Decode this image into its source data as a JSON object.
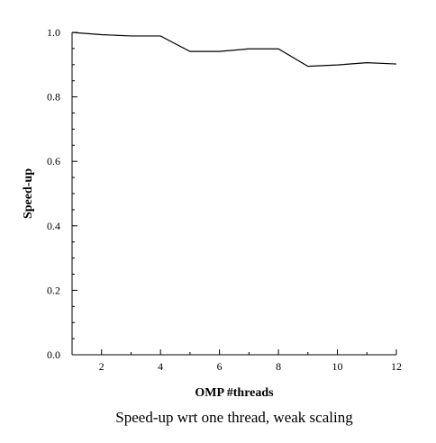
{
  "chart_data": {
    "type": "line",
    "title": "",
    "caption": "Speed-up wrt one thread, weak scaling",
    "xlabel": "OMP #threads",
    "ylabel": "Speed-up",
    "xlim": [
      1,
      12
    ],
    "ylim": [
      0.0,
      1.0
    ],
    "x_ticks": [
      2,
      4,
      6,
      8,
      10,
      12
    ],
    "y_ticks": [
      0.0,
      0.2,
      0.4,
      0.6,
      0.8,
      1.0
    ],
    "y_tick_labels": [
      "0.0",
      "0.2",
      "0.4",
      "0.6",
      "0.8",
      "1.0"
    ],
    "grid": false,
    "legend": "none",
    "series": [
      {
        "x": [
          1,
          2,
          3,
          4,
          5,
          6,
          7,
          8,
          9,
          10,
          11,
          12
        ],
        "values": [
          1.0,
          0.993,
          0.989,
          0.989,
          0.941,
          0.941,
          0.949,
          0.949,
          0.895,
          0.899,
          0.906,
          0.902
        ]
      }
    ],
    "line_color": "#000000"
  }
}
